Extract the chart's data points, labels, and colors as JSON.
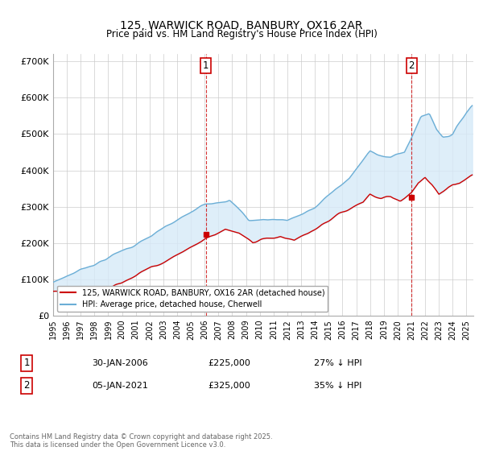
{
  "title": "125, WARWICK ROAD, BANBURY, OX16 2AR",
  "subtitle": "Price paid vs. HM Land Registry's House Price Index (HPI)",
  "ylim": [
    0,
    720000
  ],
  "yticks": [
    0,
    100000,
    200000,
    300000,
    400000,
    500000,
    600000,
    700000
  ],
  "ytick_labels": [
    "£0",
    "£100K",
    "£200K",
    "£300K",
    "£400K",
    "£500K",
    "£600K",
    "£700K"
  ],
  "xlim_start": 1995.0,
  "xlim_end": 2025.5,
  "xticks": [
    1995,
    1996,
    1997,
    1998,
    1999,
    2000,
    2001,
    2002,
    2003,
    2004,
    2005,
    2006,
    2007,
    2008,
    2009,
    2010,
    2011,
    2012,
    2013,
    2014,
    2015,
    2016,
    2017,
    2018,
    2019,
    2020,
    2021,
    2022,
    2023,
    2024,
    2025
  ],
  "hpi_color": "#6baed6",
  "hpi_fill_color": "#d6eaf8",
  "price_color": "#cc0000",
  "marker1_year": 2006.08,
  "marker1_value": 225000,
  "marker1_label": "1",
  "marker2_year": 2021.02,
  "marker2_value": 325000,
  "marker2_label": "2",
  "legend_line1": "125, WARWICK ROAD, BANBURY, OX16 2AR (detached house)",
  "legend_line2": "HPI: Average price, detached house, Cherwell",
  "annotation1_num": "1",
  "annotation1_date": "30-JAN-2006",
  "annotation1_price": "£225,000",
  "annotation1_hpi": "27% ↓ HPI",
  "annotation2_num": "2",
  "annotation2_date": "05-JAN-2021",
  "annotation2_price": "£325,000",
  "annotation2_hpi": "35% ↓ HPI",
  "footnote": "Contains HM Land Registry data © Crown copyright and database right 2025.\nThis data is licensed under the Open Government Licence v3.0.",
  "bg_color": "#ffffff",
  "grid_color": "#cccccc"
}
